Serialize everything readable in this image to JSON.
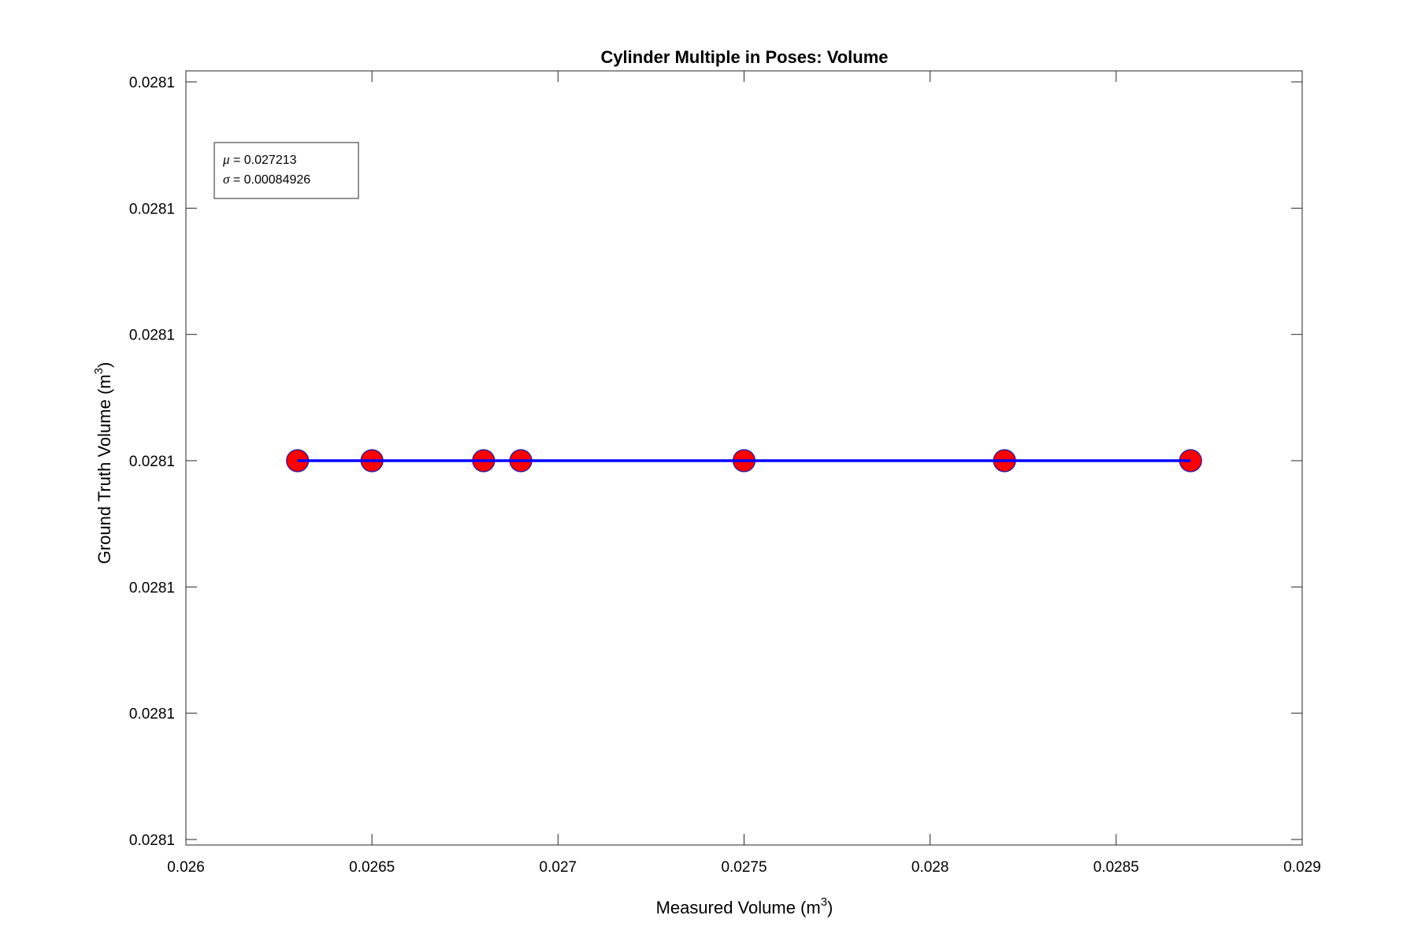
{
  "chart_data": {
    "type": "scatter",
    "title": "Cylinder Multiple in Poses: Volume",
    "xlabel": "Measured Volume (m",
    "xlabel_sup": "3",
    "xlabel_close": ")",
    "ylabel": "Ground Truth Volume (m",
    "ylabel_sup": "3",
    "ylabel_close": ")",
    "xlim": [
      0.026,
      0.029
    ],
    "x_ticks": [
      0.026,
      0.0265,
      0.027,
      0.0275,
      0.028,
      0.0285,
      0.029
    ],
    "x_tick_labels": [
      "0.026",
      "0.0265",
      "0.027",
      "0.0275",
      "0.028",
      "0.0285",
      "0.029"
    ],
    "y_tick_labels": [
      "0.0281",
      "0.0281",
      "0.0281",
      "0.0281",
      "0.0281",
      "0.0281",
      "0.0281"
    ],
    "grid": false,
    "series": [
      {
        "kind": "points",
        "color": "#ff0000",
        "edge_color": "#1a1aa8",
        "x": [
          0.0263,
          0.0265,
          0.0268,
          0.0269,
          0.0275,
          0.0282,
          0.0287
        ],
        "y": [
          0.0281,
          0.0281,
          0.0281,
          0.0281,
          0.0281,
          0.0281,
          0.0281
        ]
      },
      {
        "kind": "line",
        "color": "#0000ff",
        "x": [
          0.0263,
          0.0287
        ],
        "y": [
          0.0281,
          0.0281
        ]
      }
    ],
    "annotation": {
      "placement": "top-left",
      "mu_symbol": "μ",
      "mu_text": " = 0.027213",
      "sigma_symbol": "σ",
      "sigma_text": " = 0.00084926"
    }
  }
}
